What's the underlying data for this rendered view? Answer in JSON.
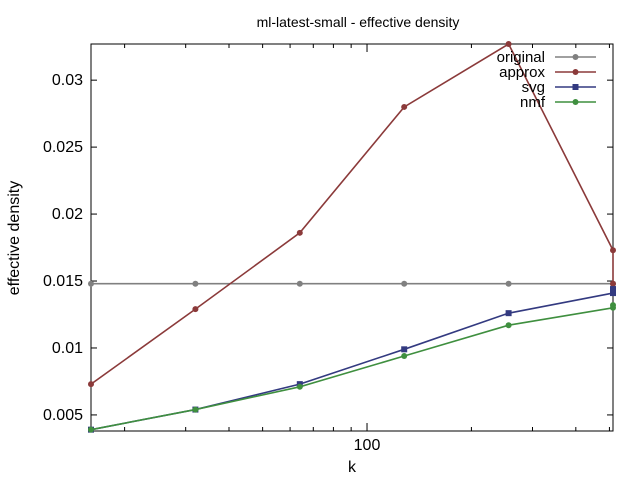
{
  "chart_data": {
    "type": "line",
    "title": "ml-latest-small - effective density",
    "xlabel": "k",
    "ylabel": "effective density",
    "xscale": "log",
    "xlim": [
      16,
      512
    ],
    "ylim": [
      0.0038,
      0.0327
    ],
    "x_ticks": [
      {
        "value": 100,
        "label": "100"
      }
    ],
    "y_ticks": [
      {
        "value": 0.005,
        "label": "0.005"
      },
      {
        "value": 0.01,
        "label": "0.01"
      },
      {
        "value": 0.015,
        "label": "0.015"
      },
      {
        "value": 0.02,
        "label": "0.02"
      },
      {
        "value": 0.025,
        "label": "0.025"
      },
      {
        "value": 0.03,
        "label": "0.03"
      }
    ],
    "grid": false,
    "legend_position": "top-right",
    "x": [
      16,
      32,
      64,
      128,
      256,
      512
    ],
    "series": [
      {
        "name": "original",
        "color": "#808080",
        "marker": "circle",
        "values": [
          0.0148,
          0.0148,
          0.0148,
          0.0148,
          0.0148,
          0.0148
        ]
      },
      {
        "name": "approx",
        "color": "#8b3a3a",
        "marker": "circle",
        "values": [
          0.0073,
          0.0129,
          0.0186,
          0.028,
          0.0327,
          0.0173
        ]
      },
      {
        "name": "svg",
        "color": "#333a80",
        "marker": "square",
        "values": [
          0.0039,
          0.0054,
          0.0073,
          0.0099,
          0.0126,
          0.0141
        ]
      },
      {
        "name": "nmf",
        "color": "#3f8f3f",
        "marker": "circle",
        "values": [
          0.0039,
          0.0054,
          0.0071,
          0.0094,
          0.0117,
          0.013
        ]
      }
    ],
    "series_tail": {
      "approx": 0.0148,
      "svg": 0.0144,
      "nmf": 0.0132
    }
  }
}
